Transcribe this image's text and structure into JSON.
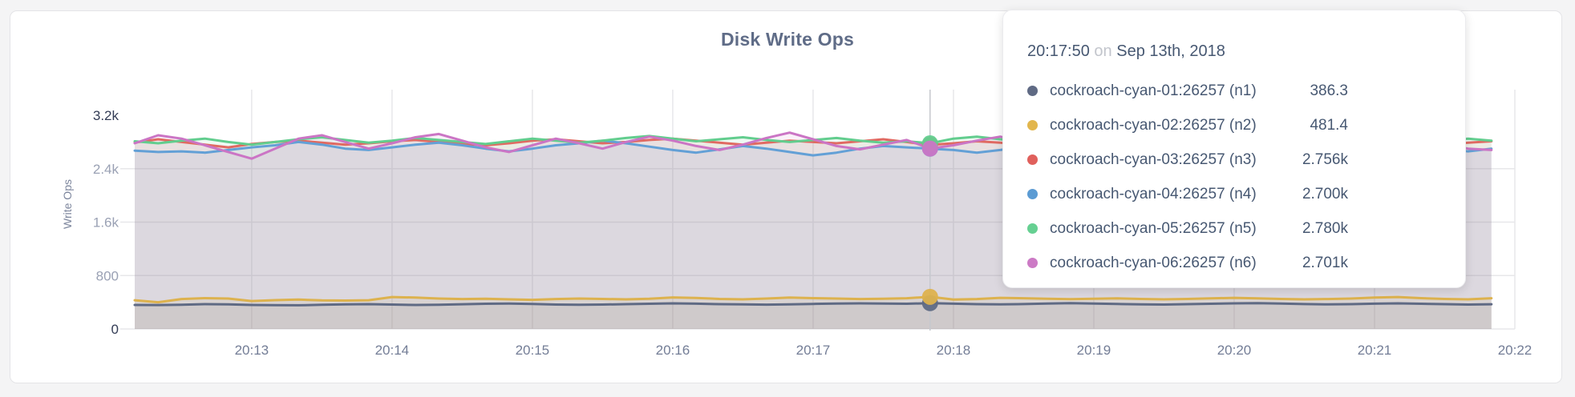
{
  "card": {
    "background": "#ffffff"
  },
  "chart_data": {
    "type": "line",
    "title": "Disk Write Ops",
    "ylabel": "Write Ops",
    "xlabel": "",
    "ylim": [
      0,
      3200
    ],
    "grid": true,
    "x_interval_seconds": 10,
    "x_ticks": [
      {
        "label": "20:13",
        "offset_seconds": 50
      },
      {
        "label": "20:14",
        "offset_seconds": 110
      },
      {
        "label": "20:15",
        "offset_seconds": 170
      },
      {
        "label": "20:16",
        "offset_seconds": 230
      },
      {
        "label": "20:17",
        "offset_seconds": 290
      },
      {
        "label": "20:18",
        "offset_seconds": 350
      },
      {
        "label": "20:19",
        "offset_seconds": 410
      },
      {
        "label": "20:20",
        "offset_seconds": 470
      },
      {
        "label": "20:21",
        "offset_seconds": 530
      },
      {
        "label": "20:22",
        "offset_seconds": 590
      }
    ],
    "y_ticks": [
      {
        "label": "0",
        "value": 0,
        "strong": true,
        "gridline": true
      },
      {
        "label": "800",
        "value": 800,
        "strong": false,
        "gridline": true
      },
      {
        "label": "1.6k",
        "value": 1600,
        "strong": false,
        "gridline": true
      },
      {
        "label": "2.4k",
        "value": 2400,
        "strong": false,
        "gridline": true
      },
      {
        "label": "3.2k",
        "value": 3200,
        "strong": true,
        "gridline": false
      }
    ],
    "hover_index": 34,
    "series": [
      {
        "name": "cockroach-cyan-01:26257 (n1)",
        "color": "#5f6a84",
        "values": [
          360,
          358,
          362,
          371,
          368,
          360,
          357,
          355,
          362,
          368,
          372,
          366,
          360,
          363,
          370,
          377,
          381,
          374,
          366,
          362,
          365,
          371,
          378,
          383,
          379,
          372,
          368,
          364,
          369,
          375,
          380,
          384,
          380,
          377,
          386.3,
          379,
          372,
          368,
          373,
          380,
          386,
          381,
          374,
          369,
          365,
          371,
          377,
          383,
          387,
          380,
          373,
          368,
          372,
          379,
          384,
          378,
          371,
          366,
          370
        ]
      },
      {
        "name": "cockroach-cyan-02:26257 (n2)",
        "color": "#ddb24e",
        "values": [
          430,
          400,
          448,
          462,
          455,
          418,
          432,
          440,
          428,
          425,
          430,
          478,
          470,
          455,
          448,
          452,
          444,
          436,
          448,
          455,
          450,
          444,
          452,
          472,
          465,
          450,
          444,
          456,
          470,
          462,
          455,
          448,
          452,
          460,
          481.4,
          440,
          448,
          466,
          460,
          452,
          446,
          452,
          458,
          450,
          444,
          450,
          458,
          466,
          459,
          450,
          444,
          448,
          456,
          470,
          478,
          462,
          450,
          444,
          460
        ]
      },
      {
        "name": "cockroach-cyan-03:26257 (n3)",
        "color": "#e06a62",
        "values": [
          2790,
          2840,
          2800,
          2760,
          2720,
          2770,
          2800,
          2820,
          2790,
          2760,
          2780,
          2810,
          2830,
          2800,
          2770,
          2750,
          2780,
          2820,
          2840,
          2810,
          2780,
          2800,
          2830,
          2850,
          2820,
          2790,
          2760,
          2790,
          2820,
          2800,
          2780,
          2810,
          2840,
          2800,
          2756,
          2780,
          2810,
          2790,
          2760,
          2740,
          2770,
          2800,
          2820,
          2790,
          2770,
          2750,
          2780,
          2810,
          2830,
          2800,
          2770,
          2790,
          2820,
          2840,
          2810,
          2780,
          2760,
          2790,
          2810
        ]
      },
      {
        "name": "cockroach-cyan-04:26257 (n4)",
        "color": "#63a0d6",
        "values": [
          2670,
          2650,
          2660,
          2640,
          2680,
          2720,
          2750,
          2800,
          2760,
          2700,
          2680,
          2720,
          2760,
          2790,
          2750,
          2700,
          2660,
          2700,
          2750,
          2780,
          2820,
          2780,
          2730,
          2680,
          2640,
          2690,
          2740,
          2700,
          2650,
          2600,
          2640,
          2700,
          2740,
          2720,
          2700,
          2680,
          2640,
          2680,
          2730,
          2770,
          2740,
          2700,
          2660,
          2700,
          2750,
          2720,
          2680,
          2650,
          2690,
          2730,
          2700,
          2670,
          2700,
          2740,
          2780,
          2740,
          2700,
          2660,
          2700
        ]
      },
      {
        "name": "cockroach-cyan-05:26257 (n5)",
        "color": "#62cd8e",
        "values": [
          2810,
          2780,
          2820,
          2850,
          2800,
          2760,
          2800,
          2840,
          2870,
          2830,
          2790,
          2820,
          2860,
          2830,
          2800,
          2770,
          2810,
          2850,
          2820,
          2790,
          2820,
          2860,
          2890,
          2850,
          2810,
          2840,
          2870,
          2830,
          2800,
          2830,
          2860,
          2820,
          2790,
          2810,
          2780,
          2850,
          2880,
          2840,
          2800,
          2830,
          2860,
          2820,
          2790,
          2820,
          2850,
          2810,
          2780,
          2810,
          2840,
          2870,
          2830,
          2800,
          2830,
          2860,
          2820,
          2790,
          2820,
          2850,
          2820
        ]
      },
      {
        "name": "cockroach-cyan-06:26257 (n6)",
        "color": "#cb75c5",
        "values": [
          2780,
          2900,
          2850,
          2750,
          2650,
          2550,
          2700,
          2850,
          2900,
          2800,
          2700,
          2780,
          2870,
          2920,
          2820,
          2720,
          2650,
          2750,
          2850,
          2780,
          2700,
          2800,
          2880,
          2820,
          2740,
          2680,
          2760,
          2860,
          2940,
          2840,
          2740,
          2690,
          2760,
          2830,
          2701,
          2750,
          2820,
          2880,
          2800,
          2720,
          2670,
          2740,
          2820,
          2760,
          2700,
          2760,
          2830,
          2770,
          2710,
          2780,
          2850,
          2790,
          2730,
          2680,
          2740,
          2800,
          2760,
          2700,
          2680
        ]
      }
    ]
  },
  "tooltip": {
    "time": "20:17:50",
    "separator": "on",
    "date": "Sep 13th, 2018",
    "rows": [
      {
        "label": "cockroach-cyan-01:26257 (n1)",
        "value": "386.3",
        "color": "#5f6a84"
      },
      {
        "label": "cockroach-cyan-02:26257 (n2)",
        "value": "481.4",
        "color": "#e2b64d"
      },
      {
        "label": "cockroach-cyan-03:26257 (n3)",
        "value": "2.756k",
        "color": "#e0605c"
      },
      {
        "label": "cockroach-cyan-04:26257 (n4)",
        "value": "2.700k",
        "color": "#5b9bd3"
      },
      {
        "label": "cockroach-cyan-05:26257 (n5)",
        "value": "2.780k",
        "color": "#66d092"
      },
      {
        "label": "cockroach-cyan-06:26257 (n6)",
        "value": "2.701k",
        "color": "#cc7ac5"
      }
    ]
  },
  "colors": {
    "guideline": "#c6c8ce",
    "gridline": "#e7e7ea",
    "tick_label": "#737d96",
    "tick_label_strong": "#333c55",
    "title": "#5f6c87",
    "text": "#475872"
  }
}
